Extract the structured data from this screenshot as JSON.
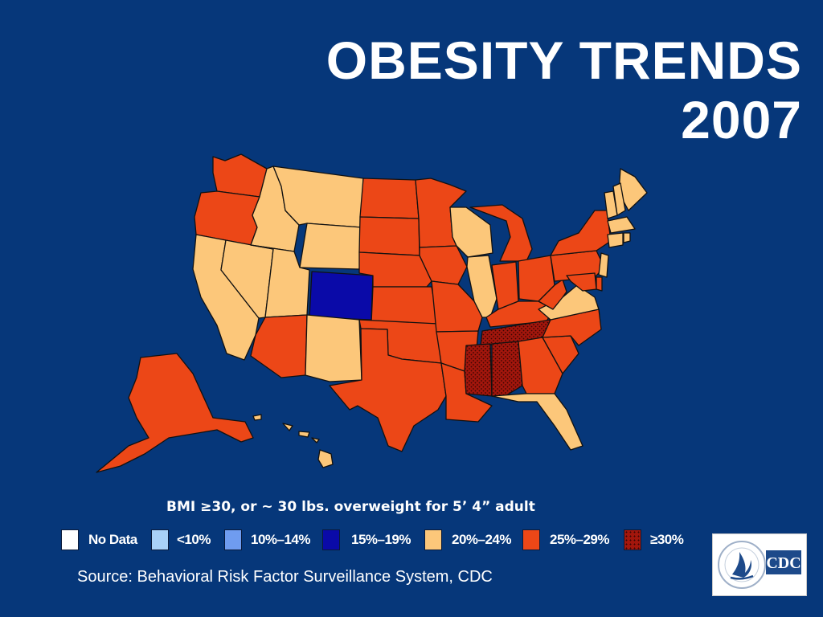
{
  "title": {
    "line1": "OBESITY TRENDS",
    "line2": "2007"
  },
  "subtitle": "BMI ≥30, or ~ 30 lbs. overweight for 5’ 4” adult",
  "legend": [
    {
      "label": "No Data",
      "color": "#ffffff",
      "pattern": "none"
    },
    {
      "label": "<10%",
      "color": "#a9d1f7",
      "pattern": "none"
    },
    {
      "label": "10%–14%",
      "color": "#6f9cf0",
      "pattern": "none"
    },
    {
      "label": "15%–19%",
      "color": "#0a0aa8",
      "pattern": "none"
    },
    {
      "label": "20%–24%",
      "color": "#fcc77a",
      "pattern": "none"
    },
    {
      "label": "25%–29%",
      "color": "#ec4717",
      "pattern": "none"
    },
    {
      "label": "≥30%",
      "color": "#a3160c",
      "pattern": "dots"
    }
  ],
  "source": "Source: Behavioral Risk Factor Surveillance System, CDC",
  "logo": {
    "text": "CDC",
    "icon": "hhs-eagle-icon"
  },
  "state_categories": {
    "WA": "25%–29%",
    "OR": "25%–29%",
    "CA": "20%–24%",
    "NV": "20%–24%",
    "ID": "20%–24%",
    "MT": "20%–24%",
    "WY": "20%–24%",
    "UT": "20%–24%",
    "CO": "15%–19%",
    "AZ": "25%–29%",
    "NM": "20%–24%",
    "ND": "25%–29%",
    "SD": "25%–29%",
    "NE": "25%–29%",
    "KS": "25%–29%",
    "OK": "25%–29%",
    "TX": "25%–29%",
    "MN": "25%–29%",
    "IA": "25%–29%",
    "MO": "25%–29%",
    "AR": "25%–29%",
    "LA": "25%–29%",
    "WI": "20%–24%",
    "IL": "20%–24%",
    "MI": "25%–29%",
    "IN": "25%–29%",
    "OH": "25%–29%",
    "KY": "25%–29%",
    "TN": "≥30%",
    "MS": "≥30%",
    "AL": "≥30%",
    "GA": "25%–29%",
    "FL": "20%–24%",
    "SC": "25%–29%",
    "NC": "25%–29%",
    "VA": "20%–24%",
    "WV": "25%–29%",
    "PA": "25%–29%",
    "NY": "25%–29%",
    "ME": "20%–24%",
    "NH": "20%–24%",
    "VT": "20%–24%",
    "MA": "20%–24%",
    "CT": "20%–24%",
    "RI": "20%–24%",
    "NJ": "20%–24%",
    "DE": "25%–29%",
    "MD": "25%–29%",
    "AK": "25%–29%",
    "HI": "20%–24%"
  }
}
